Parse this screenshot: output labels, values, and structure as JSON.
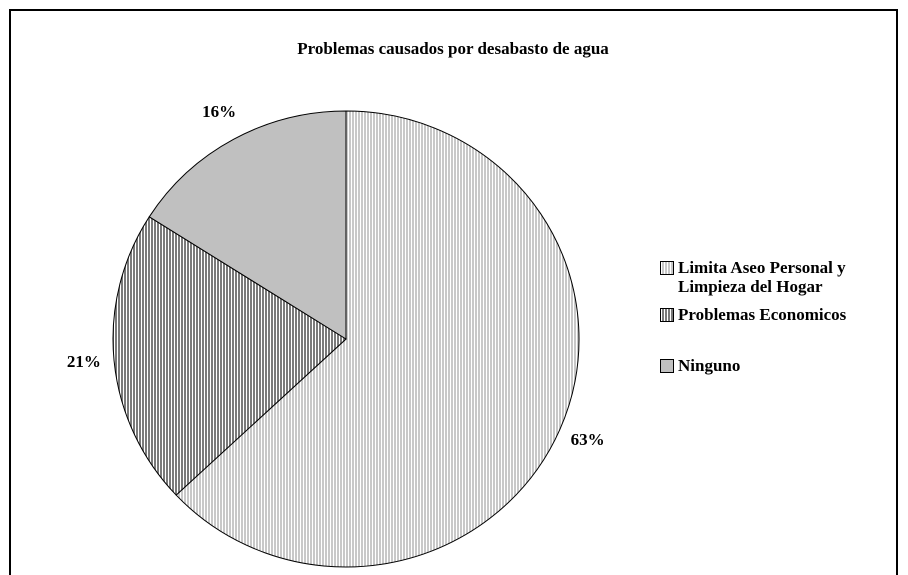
{
  "chart_data": {
    "type": "pie",
    "title": "Problemas causados por desabasto de agua",
    "categories": [
      "Limita Aseo Personal y Limpieza del Hogar",
      "Problemas Economicos",
      "Ninguno"
    ],
    "values": [
      63,
      21,
      16
    ],
    "value_labels": [
      "63%",
      "21%",
      "16%"
    ],
    "colors": [
      "#c8c8c8",
      "#7a7a7a",
      "#c0c0c0"
    ],
    "patterns": [
      "stripes",
      "stripes",
      "solid"
    ],
    "legend": "right"
  }
}
